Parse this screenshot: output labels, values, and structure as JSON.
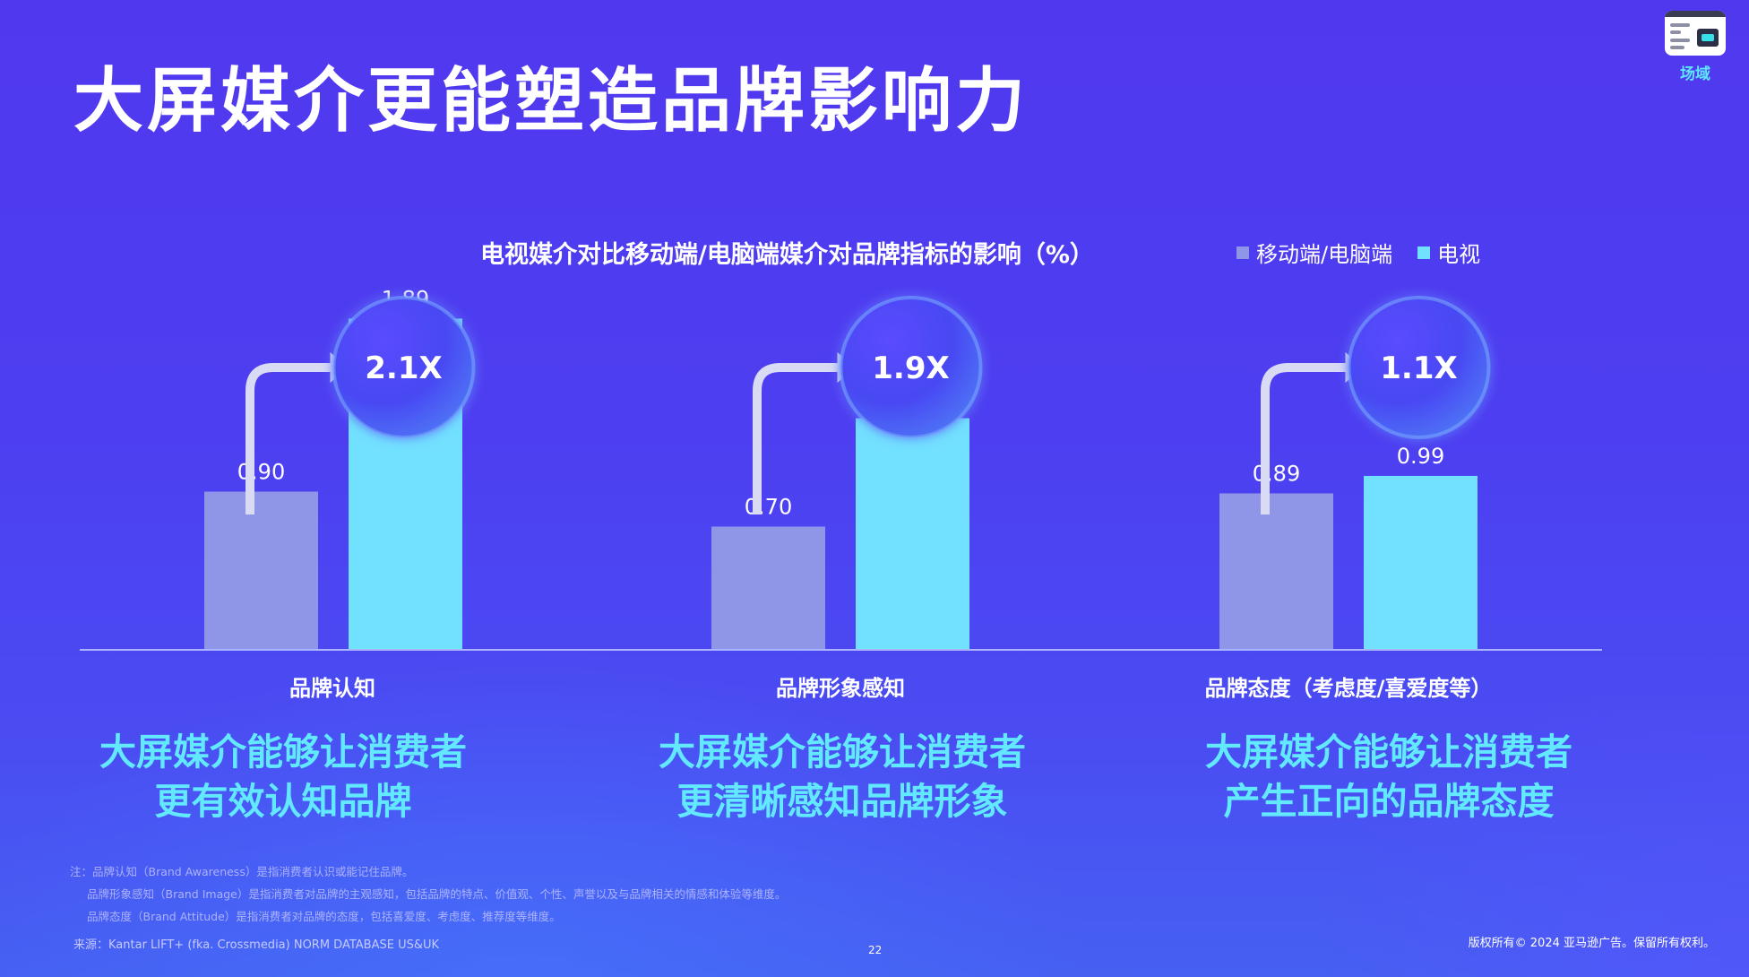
{
  "title": "大屏媒介更能塑造品牌影响力",
  "logo": {
    "text": "场域",
    "icon": "tv-ad-icon"
  },
  "chart_title": "电视媒介对比移动端/电脑端媒介对品牌指标的影响（%）",
  "legend": [
    {
      "label": "移动端/电脑端",
      "color": "#8f96e8"
    },
    {
      "label": "电视",
      "color": "#72e0ff"
    }
  ],
  "chart_data": {
    "type": "bar",
    "categories": [
      "品牌认知",
      "品牌形象感知",
      "品牌态度（考虑度/喜爱度等）"
    ],
    "series": [
      {
        "name": "移动端/电脑端",
        "values": [
          0.9,
          0.7,
          0.89
        ],
        "labels": [
          "0.90",
          "0.70",
          "0.89"
        ]
      },
      {
        "name": "电视",
        "values": [
          1.89,
          1.32,
          0.99
        ],
        "labels": [
          "1.89",
          "1.32",
          "0.99"
        ]
      }
    ],
    "multipliers": [
      "2.1X",
      "1.9X",
      "1.1X"
    ],
    "ylim": [
      0,
      2.0
    ]
  },
  "messages": [
    [
      "大屏媒介能够让消费者",
      "更有效认知品牌"
    ],
    [
      "大屏媒介能够让消费者",
      "更清晰感知品牌形象"
    ],
    [
      "大屏媒介能够让消费者",
      "产生正向的品牌态度"
    ]
  ],
  "notes": [
    "注：品牌认知（Brand Awareness）是指消费者认识或能记住品牌。",
    "品牌形象感知（Brand Image）是指消费者对品牌的主观感知，包括品牌的特点、价值观、个性、声誉以及与品牌相关的情感和体验等维度。",
    "品牌态度（Brand Attitude）是指消费者对品牌的态度，包括喜爱度、考虑度、推荐度等维度。"
  ],
  "source": "来源：Kantar LIFT+ (fka. Crossmedia) NORM DATABASE US&UK",
  "page_number": "22",
  "copyright": "版权所有© 2024 亚马逊广告。保留所有权利。"
}
